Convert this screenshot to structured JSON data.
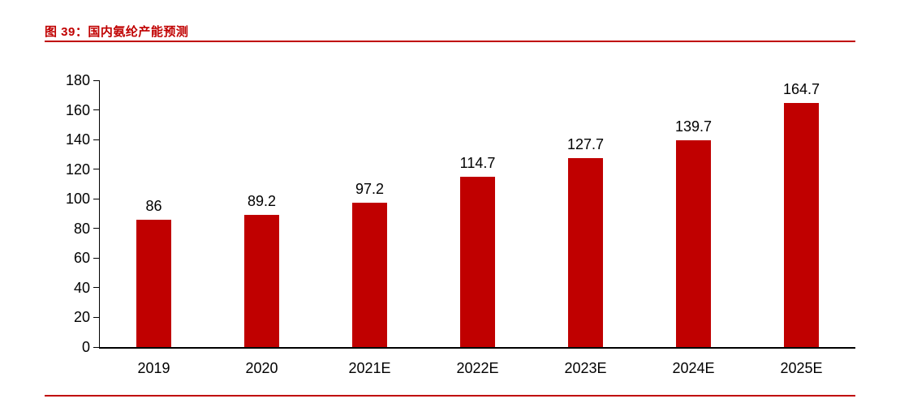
{
  "header": {
    "title": "图 39：国内氨纶产能预测"
  },
  "colors": {
    "bar": "#c00000",
    "rule": "#c00000",
    "axis": "#000000",
    "title_text": "#c00000"
  },
  "chart_data": {
    "type": "bar",
    "title": "图 39：国内氨纶产能预测",
    "categories": [
      "2019",
      "2020",
      "2021E",
      "2022E",
      "2023E",
      "2024E",
      "2025E"
    ],
    "values": [
      86,
      89.2,
      97.2,
      114.7,
      127.7,
      139.7,
      164.7
    ],
    "value_labels": [
      "86",
      "89.2",
      "97.2",
      "114.7",
      "127.7",
      "139.7",
      "164.7"
    ],
    "xlabel": "",
    "ylabel": "",
    "ylim": [
      0,
      180
    ],
    "yticks": [
      0,
      20,
      40,
      60,
      80,
      100,
      120,
      140,
      160,
      180
    ],
    "grid": false,
    "legend": false,
    "bar_color": "#c00000"
  }
}
